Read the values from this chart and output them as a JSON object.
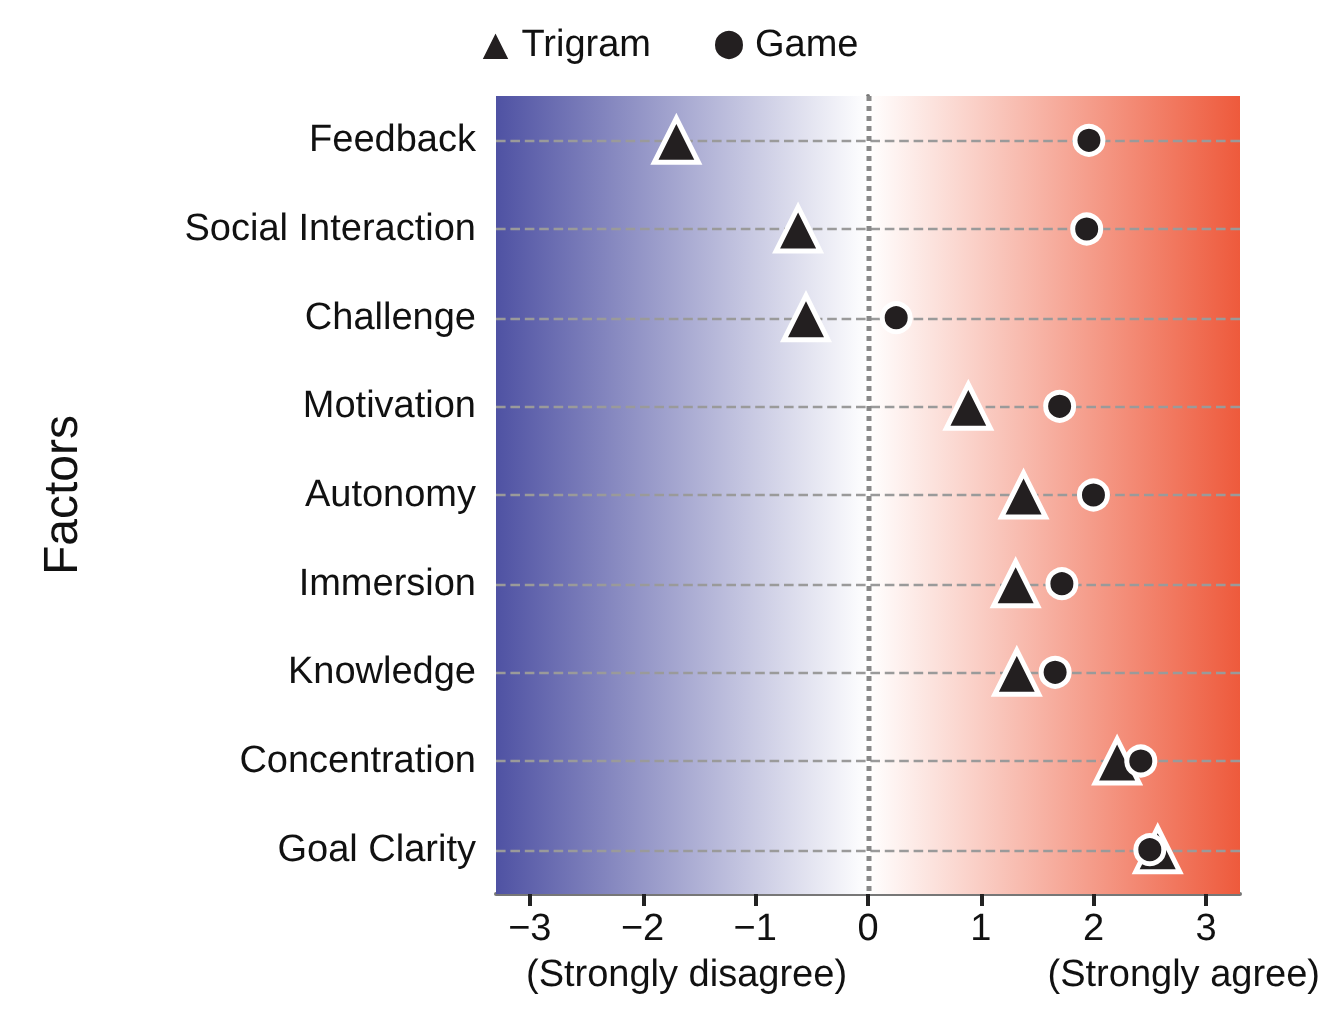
{
  "chart_data": {
    "type": "scatter",
    "orientation": "horizontal",
    "ylabel": "Factors",
    "categories": [
      "Feedback",
      "Social Interaction",
      "Challenge",
      "Motivation",
      "Autonomy",
      "Immersion",
      "Knowledge",
      "Concentration",
      "Goal Clarity"
    ],
    "series": [
      {
        "name": "Trigram",
        "color": "#231f20",
        "marker": "triangle",
        "values": [
          -1.7,
          -0.62,
          -0.55,
          0.89,
          1.38,
          1.31,
          1.32,
          2.21,
          2.57
        ]
      },
      {
        "name": "Game",
        "color": "#231f20",
        "marker": "circle",
        "values": [
          1.96,
          1.94,
          0.25,
          1.7,
          2.0,
          1.72,
          1.66,
          2.42,
          2.5
        ]
      }
    ],
    "xlim": [
      -3.3,
      3.3
    ],
    "xticks": [
      {
        "value": -3,
        "label": "−3"
      },
      {
        "value": -2,
        "label": "−2"
      },
      {
        "value": -1,
        "label": "−1"
      },
      0,
      1,
      2,
      3
    ],
    "annotations": [
      "(Strongly disagree)",
      "(Strongly agree)"
    ],
    "bands": [
      {
        "axis": "x",
        "from": -3.3,
        "to": 0,
        "color": "#4f52a3"
      },
      {
        "axis": "x",
        "from": 0,
        "to": 3.3,
        "color": "#ee5a3c"
      }
    ],
    "ref_lines": [
      {
        "axis": "x",
        "value": 0,
        "line_style": "dotted",
        "color": "#888888"
      }
    ],
    "grid": "y",
    "legend": "top"
  }
}
